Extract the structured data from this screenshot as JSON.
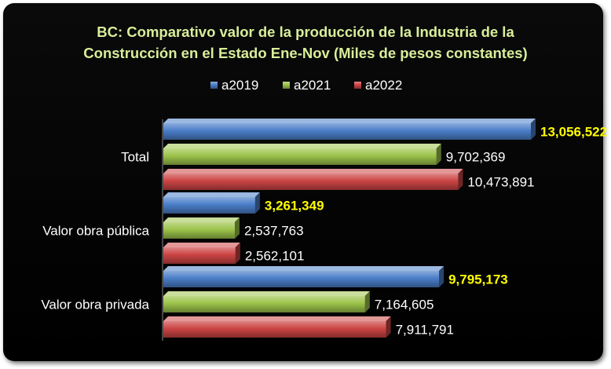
{
  "chart_data": {
    "type": "bar",
    "orientation": "horizontal",
    "title": "BC: Comparativo valor de la producción de la Industria de la Construcción en el Estado Ene-Nov (Miles de pesos constantes)",
    "title_lines": [
      "BC: Comparativo valor de la producción de la Industria de la",
      "Construcción en el Estado Ene-Nov (Miles de pesos constantes)"
    ],
    "categories": [
      "Total",
      "Valor obra pública",
      "Valor obra privada"
    ],
    "series": [
      {
        "name": "a2019",
        "color": "#4a7ec8",
        "values": [
          13056522,
          3261349,
          9795173
        ],
        "value_labels": [
          "13,056,522",
          "3,261,349",
          "9,795,173"
        ],
        "highlight": true
      },
      {
        "name": "a2021",
        "color": "#9cc34a",
        "values": [
          9702369,
          2537763,
          7164605
        ],
        "value_labels": [
          "9,702,369",
          "2,537,763",
          "7,164,605"
        ],
        "highlight": false
      },
      {
        "name": "a2022",
        "color": "#cc4444",
        "values": [
          10473891,
          2562101,
          7911791
        ],
        "value_labels": [
          "10,473,891",
          "2,562,101",
          "7,911,791"
        ],
        "highlight": false
      }
    ],
    "legend_position": "top",
    "grid": false,
    "xlim": [
      0,
      13200000
    ],
    "background": "#000000",
    "title_color": "#d9ee9a",
    "highlight_label_color": "#ffff00"
  }
}
